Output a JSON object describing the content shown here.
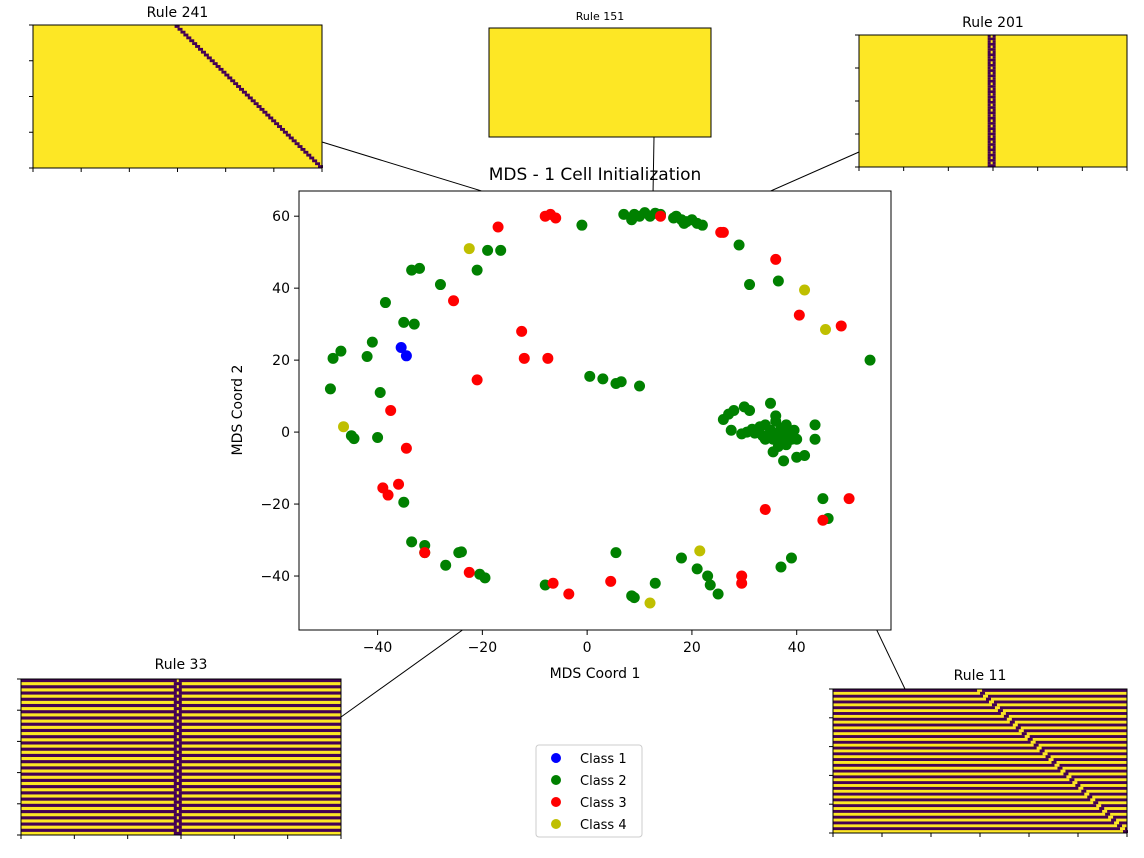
{
  "colors": {
    "class1": "#0000ff",
    "class2": "#008000",
    "class3": "#ff0000",
    "class4": "#bfbf00",
    "ca_on": "#440154",
    "ca_off": "#fde725"
  },
  "chart_data": {
    "type": "scatter",
    "title": "MDS - 1 Cell Initialization",
    "xlabel": "MDS Coord 1",
    "ylabel": "MDS Coord 2",
    "xlim": [
      -55,
      58
    ],
    "ylim": [
      -55,
      67
    ],
    "xticks": [
      -40,
      -20,
      0,
      20,
      40
    ],
    "yticks": [
      -40,
      -20,
      0,
      20,
      40,
      60
    ],
    "xtick_labels": [
      "−40",
      "−20",
      "0",
      "20",
      "40"
    ],
    "ytick_labels": [
      "−40",
      "−20",
      "0",
      "20",
      "40",
      "60"
    ],
    "grid": false,
    "legend_position": "bottom-center",
    "series": [
      {
        "name": "Class 1",
        "color_key": "class1",
        "points": [
          [
            -35.5,
            23.5
          ],
          [
            -34.5,
            21.2
          ]
        ]
      },
      {
        "name": "Class 2",
        "color_key": "class2",
        "points": [
          [
            7,
            60.5
          ],
          [
            9,
            60.5
          ],
          [
            10,
            60
          ],
          [
            11,
            61
          ],
          [
            12,
            60
          ],
          [
            13,
            60.8
          ],
          [
            14,
            60.5
          ],
          [
            17,
            60
          ],
          [
            18,
            59
          ],
          [
            19,
            58.5
          ],
          [
            20,
            59
          ],
          [
            21,
            58
          ],
          [
            22,
            57.5
          ],
          [
            16.5,
            59.5
          ],
          [
            18.5,
            58
          ],
          [
            8.5,
            59
          ],
          [
            -1,
            57.5
          ],
          [
            29,
            52
          ],
          [
            31,
            41
          ],
          [
            36.5,
            42
          ],
          [
            -19,
            50.5
          ],
          [
            -16.5,
            50.5
          ],
          [
            -21,
            45
          ],
          [
            -33.5,
            45
          ],
          [
            -32,
            45.5
          ],
          [
            -28,
            41
          ],
          [
            -38.5,
            36
          ],
          [
            -35,
            30.5
          ],
          [
            -33,
            30
          ],
          [
            -41,
            25
          ],
          [
            -47,
            22.5
          ],
          [
            -48.5,
            20.5
          ],
          [
            -42,
            21
          ],
          [
            -49,
            12
          ],
          [
            -39.5,
            11
          ],
          [
            -40,
            -1.5
          ],
          [
            -45,
            -1
          ],
          [
            -44.5,
            -1.8
          ],
          [
            0.5,
            15.5
          ],
          [
            3,
            14.8
          ],
          [
            5.5,
            13.5
          ],
          [
            6.5,
            14
          ],
          [
            10,
            12.8
          ],
          [
            54,
            20
          ],
          [
            -35,
            -19.5
          ],
          [
            -33.5,
            -30.5
          ],
          [
            -31,
            -31.5
          ],
          [
            -31,
            -33.5
          ],
          [
            -27,
            -37
          ],
          [
            -24.5,
            -33.5
          ],
          [
            -24,
            -33.3
          ],
          [
            -20.5,
            -39.5
          ],
          [
            -19.5,
            -40.5
          ],
          [
            -8,
            -42.5
          ],
          [
            5.5,
            -33.5
          ],
          [
            8.5,
            -45.5
          ],
          [
            9,
            -46
          ],
          [
            13,
            -42
          ],
          [
            18,
            -35
          ],
          [
            21,
            -38
          ],
          [
            23,
            -40
          ],
          [
            23.5,
            -42.5
          ],
          [
            25,
            -45
          ],
          [
            37,
            -37.5
          ],
          [
            39,
            -35
          ],
          [
            45,
            -18.5
          ],
          [
            46,
            -24
          ],
          [
            26,
            3.5
          ],
          [
            27,
            5
          ],
          [
            28,
            6
          ],
          [
            30,
            7
          ],
          [
            31,
            6
          ],
          [
            27.5,
            0.5
          ],
          [
            29.5,
            -0.5
          ],
          [
            30.5,
            0
          ],
          [
            31.5,
            0.8
          ],
          [
            32,
            -0.3
          ],
          [
            33,
            1.5
          ],
          [
            33.5,
            -1
          ],
          [
            34,
            2
          ],
          [
            35,
            0.5
          ],
          [
            35.5,
            -2
          ],
          [
            36,
            3
          ],
          [
            36.5,
            -0.5
          ],
          [
            37,
            1
          ],
          [
            37.5,
            -1.5
          ],
          [
            38,
            2
          ],
          [
            38.5,
            -0.5
          ],
          [
            39,
            -2
          ],
          [
            39.5,
            0.5
          ],
          [
            40,
            -2
          ],
          [
            35,
            8
          ],
          [
            36,
            4.5
          ],
          [
            34,
            -2
          ],
          [
            36.5,
            -4
          ],
          [
            37,
            -3
          ],
          [
            38,
            -3.5
          ],
          [
            35.5,
            -5.5
          ],
          [
            40,
            -7
          ],
          [
            41.5,
            -6.5
          ],
          [
            37.5,
            -8
          ],
          [
            43.5,
            2
          ],
          [
            43.5,
            -2
          ]
        ]
      },
      {
        "name": "Class 3",
        "color_key": "class3",
        "points": [
          [
            -17,
            57
          ],
          [
            -8,
            60
          ],
          [
            -7,
            60.5
          ],
          [
            -6,
            59.5
          ],
          [
            14,
            60
          ],
          [
            25.5,
            55.5
          ],
          [
            26,
            55.5
          ],
          [
            -25.5,
            36.5
          ],
          [
            -12.5,
            28
          ],
          [
            -12,
            20.5
          ],
          [
            -7.5,
            20.5
          ],
          [
            -21,
            14.5
          ],
          [
            -37.5,
            6
          ],
          [
            -34.5,
            -4.5
          ],
          [
            -39,
            -15.5
          ],
          [
            -38,
            -17.5
          ],
          [
            -36,
            -14.5
          ],
          [
            -31,
            -33.5
          ],
          [
            -22.5,
            -39
          ],
          [
            -6.5,
            -42
          ],
          [
            -3.5,
            -45
          ],
          [
            4.5,
            -41.5
          ],
          [
            29.5,
            -40
          ],
          [
            29.5,
            -42
          ],
          [
            34,
            -21.5
          ],
          [
            45,
            -24.5
          ],
          [
            50,
            -18.5
          ],
          [
            36,
            48
          ],
          [
            40.5,
            32.5
          ],
          [
            48.5,
            29.5
          ]
        ]
      },
      {
        "name": "Class 4",
        "color_key": "class4",
        "points": [
          [
            -22.5,
            51
          ],
          [
            -46.5,
            1.5
          ],
          [
            12,
            -47.5
          ],
          [
            21.5,
            -33
          ],
          [
            41.5,
            39.5
          ],
          [
            45.5,
            28.5
          ]
        ]
      }
    ],
    "insets": [
      {
        "title": "Rule 241",
        "rule": 241,
        "pattern": "diagonal",
        "anchor": [
          0,
          58
        ]
      },
      {
        "title": "Rule 151",
        "rule": 151,
        "pattern": "blank",
        "anchor": [
          12.5,
          60
        ]
      },
      {
        "title": "Rule 201",
        "rule": 201,
        "pattern": "vertical",
        "anchor": [
          21,
          58
        ]
      },
      {
        "title": "Rule 33",
        "rule": 33,
        "pattern": "vertical-striped",
        "anchor": [
          28,
          -1
        ]
      },
      {
        "title": "Rule 11",
        "rule": 11,
        "pattern": "diagonal-striped",
        "anchor": [
          37.5,
          -1
        ]
      }
    ]
  }
}
